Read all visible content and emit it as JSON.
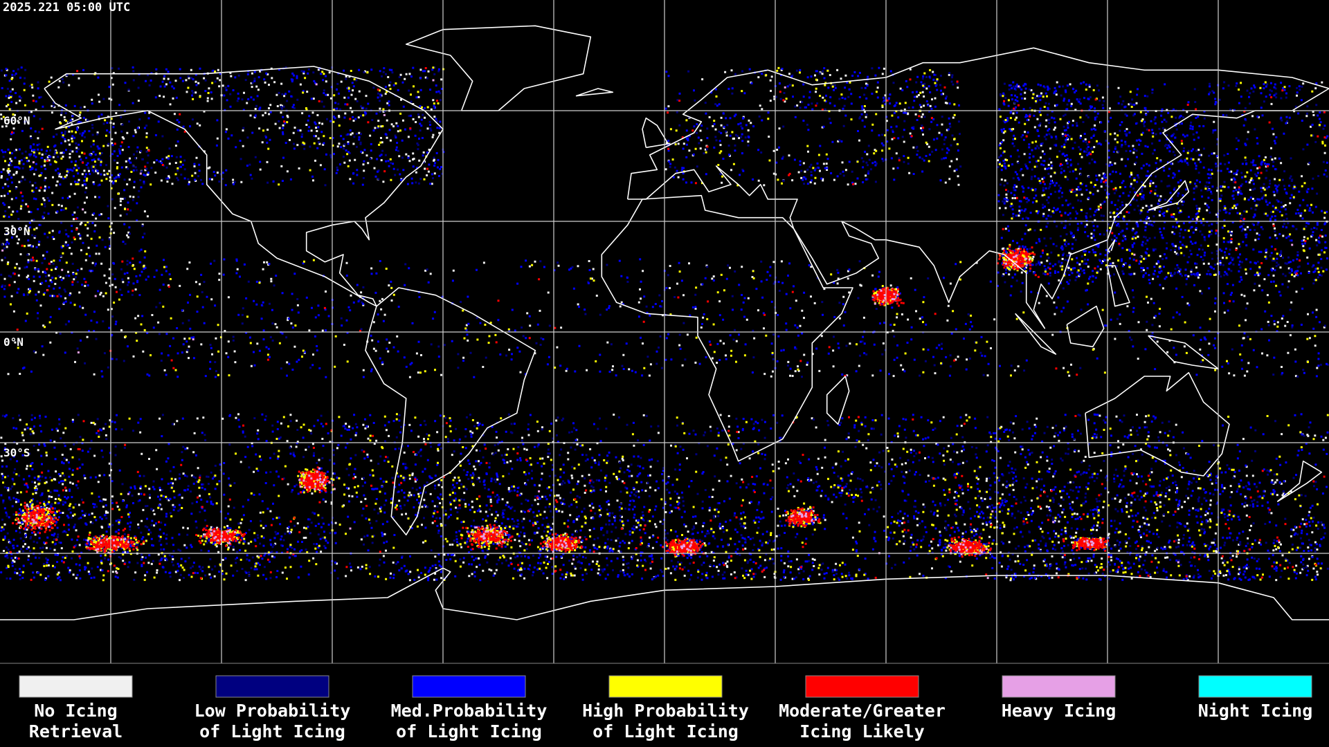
{
  "map": {
    "timestamp": "2025.221 05:00 UTC",
    "latitude_labels": [
      "60°N",
      "30°N",
      "0°N",
      "30°S"
    ]
  },
  "legend": [
    {
      "lines": [
        "No Icing",
        "Retrieval"
      ],
      "color": "#f0f0f0"
    },
    {
      "lines": [
        "Low Probability",
        "of Light Icing"
      ],
      "color": "#000080"
    },
    {
      "lines": [
        "Med.Probability",
        "of Light Icing"
      ],
      "color": "#0000ff"
    },
    {
      "lines": [
        "High Probability",
        "of Light Icing"
      ],
      "color": "#ffff00"
    },
    {
      "lines": [
        "Moderate/Greater",
        "Icing Likely"
      ],
      "color": "#ff0000"
    },
    {
      "lines": [
        "Heavy Icing"
      ],
      "color": "#e6a0e6"
    },
    {
      "lines": [
        "Night Icing"
      ],
      "color": "#00ffff"
    }
  ]
}
